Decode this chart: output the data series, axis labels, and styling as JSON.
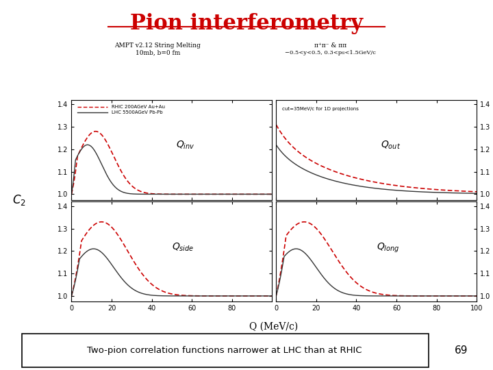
{
  "title": "Pion interferometry",
  "title_color": "#cc0000",
  "title_fontsize": 22,
  "subtitle1": "AMPT v2.12 String Melting",
  "subtitle2": "10mb, b=0 fm",
  "subtitle3": "π⁺π⁻ & ππ",
  "subtitle4": "−0.5<y<0.5, 0.3<pₜₗ<1.5GeV/c",
  "legend_rhic": "RHIC 200AGeV Au+Au",
  "legend_lhc": "LHC 5500AGeV Pb-Pb",
  "legend_cut": "cut=35MeV/c for 1D projections",
  "xlabel": "Q (MeV/c)",
  "bottom_text": "Two-pion correlation functions narrower at LHC than at RHIC",
  "page_number": "69",
  "rhic_color": "#cc0000",
  "lhc_color": "#333333",
  "background": "#ffffff"
}
